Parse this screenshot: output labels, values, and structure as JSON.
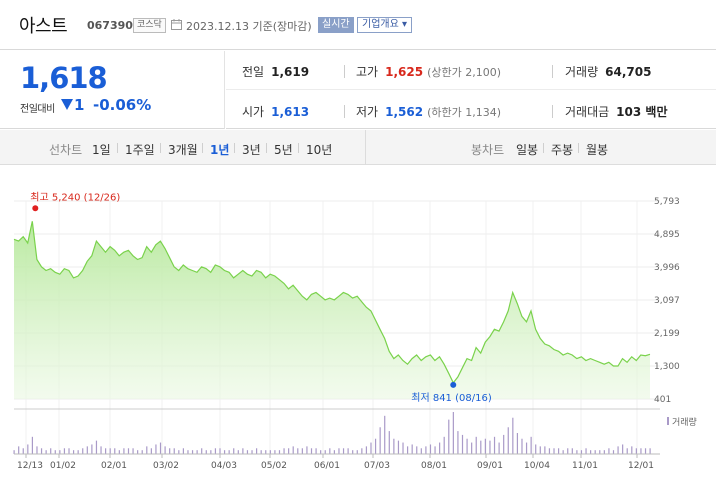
{
  "header": {
    "name": "아스트",
    "code": "067390",
    "market": "코스닥",
    "date": "2023.12.13",
    "basis": "기준(장마감)",
    "realtime": "실시간",
    "corp_info": "기업개요 ▾"
  },
  "price": {
    "current": "1,618",
    "change_label": "전일대비",
    "change_value": "1",
    "change_pct": "-0.06%"
  },
  "stats": {
    "prev_label": "전일",
    "prev": "1,619",
    "high_label": "고가",
    "high": "1,625",
    "upper_limit": "(상한가 2,100)",
    "volume_label": "거래량",
    "volume": "64,705",
    "open_label": "시가",
    "open": "1,613",
    "low_label": "저가",
    "low": "1,562",
    "lower_limit": "(하한가 1,134)",
    "amount_label": "거래대금",
    "amount": "103 백만"
  },
  "tabs": {
    "line_label": "선차트",
    "line_periods": [
      "1일",
      "1주일",
      "3개월",
      "1년",
      "3년",
      "5년",
      "10년"
    ],
    "active": "1년",
    "candle_label": "봉차트",
    "candle_periods": [
      "일봉",
      "주봉",
      "월봉"
    ]
  },
  "colors": {
    "accent_blue": "#1a5ed6",
    "up_red": "#d8281c",
    "line_green": "#7ad24c",
    "volume_bar": "#a99ac8"
  },
  "chart_data": {
    "type": "area",
    "x_ticks": [
      "12/13",
      "01/02",
      "02/01",
      "03/02",
      "04/03",
      "05/02",
      "06/01",
      "07/03",
      "08/01",
      "09/01",
      "10/04",
      "11/01",
      "12/01"
    ],
    "y_ticks": [
      "5,793",
      "4,895",
      "3,996",
      "3,097",
      "2,199",
      "1,300",
      "401"
    ],
    "ylim": [
      401,
      5793
    ],
    "high_annotation": "최고 5,240 (12/26)",
    "low_annotation": "최저 841 (08/16)",
    "volume_legend": "거래량",
    "series": [
      {
        "values": [
          4750,
          4700,
          4820,
          4650,
          5240,
          4200,
          4000,
          3900,
          3950,
          3850,
          3800,
          3950,
          3900,
          3700,
          3750,
          3900,
          4150,
          4300,
          4700,
          4550,
          4400,
          4550,
          4450,
          4300,
          4400,
          4450,
          4300,
          4200,
          4250,
          4550,
          4400,
          4600,
          4700,
          4500,
          4250,
          4000,
          3900,
          4050,
          3950,
          3900,
          3850,
          4000,
          3950,
          3850,
          4050,
          4000,
          3900,
          3850,
          3700,
          3800,
          3900,
          3800,
          3750,
          3900,
          3850,
          3700,
          3800,
          3750,
          3650,
          3550,
          3400,
          3500,
          3350,
          3200,
          3100,
          3250,
          3300,
          3200,
          3100,
          3150,
          3100,
          3200,
          3300,
          3250,
          3150,
          3200,
          3050,
          2900,
          2800,
          2550,
          2300,
          2050,
          1700,
          1500,
          1600,
          1450,
          1350,
          1500,
          1600,
          1450,
          1550,
          1600,
          1450,
          1550,
          1350,
          1100,
          841,
          1000,
          1250,
          1500,
          1450,
          1800,
          1650,
          1950,
          2100,
          2300,
          2250,
          2500,
          2800,
          3300,
          3000,
          2650,
          2500,
          2800,
          2300,
          2050,
          1900,
          1850,
          1750,
          1700,
          1600,
          1650,
          1600,
          1500,
          1550,
          1450,
          1500,
          1450,
          1400,
          1350,
          1400,
          1300,
          1300,
          1500,
          1400,
          1550,
          1450,
          1600,
          1580,
          1618
        ]
      }
    ],
    "volume": [
      2,
      4,
      3,
      5,
      9,
      4,
      3,
      2,
      3,
      2,
      2,
      3,
      3,
      2,
      2,
      3,
      4,
      5,
      7,
      4,
      3,
      3,
      3,
      2,
      3,
      3,
      3,
      2,
      2,
      4,
      3,
      5,
      6,
      4,
      3,
      3,
      2,
      3,
      2,
      2,
      2,
      3,
      2,
      2,
      3,
      3,
      2,
      2,
      3,
      2,
      3,
      2,
      2,
      3,
      2,
      2,
      2,
      2,
      2,
      3,
      3,
      4,
      3,
      3,
      4,
      3,
      3,
      2,
      2,
      3,
      2,
      3,
      3,
      3,
      2,
      2,
      3,
      4,
      6,
      8,
      14,
      20,
      12,
      8,
      7,
      6,
      4,
      5,
      4,
      3,
      4,
      5,
      4,
      6,
      9,
      18,
      22,
      12,
      10,
      8,
      6,
      9,
      7,
      8,
      7,
      9,
      6,
      10,
      14,
      19,
      11,
      8,
      6,
      9,
      5,
      4,
      4,
      3,
      3,
      3,
      2,
      3,
      3,
      2,
      2,
      3,
      2,
      2,
      2,
      2,
      3,
      2,
      4,
      5,
      3,
      4,
      3,
      3,
      3,
      3
    ]
  }
}
